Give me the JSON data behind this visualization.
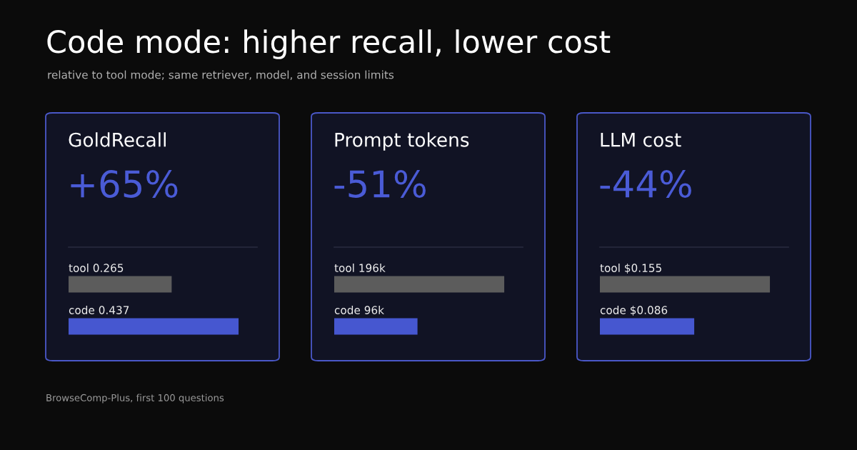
{
  "chart_data": [
    {
      "type": "other",
      "title": "Code mode: higher recall, lower cost",
      "subtitle": "relative to tool mode; same retriever, model, and session limits",
      "annotations": [
        "BrowseComp-Plus, first 100 questions"
      ]
    },
    {
      "type": "bar",
      "orientation": "horizontal",
      "title": "GoldRecall",
      "annotations": [
        "+65%"
      ],
      "categories": [
        null,
        null
      ],
      "values": [
        0.265,
        0.437
      ],
      "value_labels": [
        "tool 0.265",
        "code 0.437"
      ],
      "colors": [
        "#5c5c5c",
        "#4657d0"
      ],
      "tick_labels": false
    },
    {
      "type": "bar",
      "orientation": "horizontal",
      "title": "Prompt tokens",
      "annotations": [
        "-51%"
      ],
      "categories": [
        null,
        null
      ],
      "values": [
        196000,
        96000
      ],
      "value_labels": [
        "tool 196k",
        "code 96k"
      ],
      "colors": [
        "#5c5c5c",
        "#4657d0"
      ],
      "tick_labels": false
    },
    {
      "type": "bar",
      "orientation": "horizontal",
      "title": "LLM cost",
      "annotations": [
        "-44%"
      ],
      "categories": [
        null,
        null
      ],
      "values": [
        0.155,
        0.086
      ],
      "value_labels": [
        "tool $0.155",
        "code $0.086"
      ],
      "colors": [
        "#5c5c5c",
        "#4657d0"
      ],
      "tick_labels": false
    }
  ]
}
